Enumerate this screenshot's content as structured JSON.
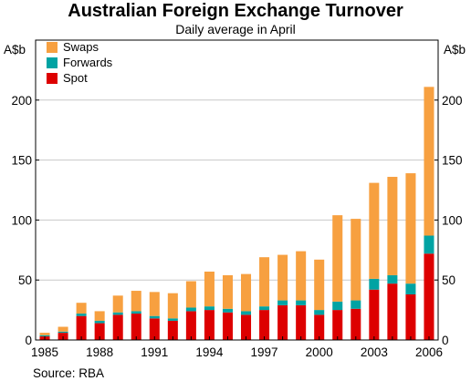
{
  "chart_data": {
    "type": "bar",
    "stacked": true,
    "title": "Australian Foreign Exchange Turnover",
    "subtitle": "Daily average in April",
    "ylabel_left": "A$b",
    "ylabel_right": "A$b",
    "source": "Source: RBA",
    "ylim": [
      0,
      250
    ],
    "yticks": [
      0,
      50,
      100,
      150,
      200
    ],
    "xlim": [
      1985,
      2006
    ],
    "xticks": [
      1985,
      1988,
      1991,
      1994,
      1997,
      2000,
      2003,
      2006
    ],
    "grid": true,
    "legend_position": "top-left",
    "x": [
      1985,
      1986,
      1987,
      1988,
      1989,
      1990,
      1991,
      1992,
      1993,
      1994,
      1995,
      1996,
      1997,
      1998,
      1999,
      2000,
      2001,
      2002,
      2003,
      2004,
      2005,
      2006
    ],
    "series": [
      {
        "name": "Spot",
        "color": "#dd0000",
        "values": [
          3,
          6,
          20,
          14,
          21,
          22,
          18,
          16,
          24,
          25,
          23,
          21,
          25,
          29,
          29,
          21,
          25,
          26,
          42,
          47,
          38,
          72
        ]
      },
      {
        "name": "Forwards",
        "color": "#00a3a3",
        "values": [
          1,
          1,
          2,
          2,
          2,
          2,
          2,
          2,
          3,
          3,
          3,
          3,
          3,
          4,
          4,
          4,
          7,
          7,
          9,
          7,
          9,
          15
        ]
      },
      {
        "name": "Swaps",
        "color": "#f7a040",
        "values": [
          2,
          4,
          9,
          8,
          14,
          17,
          20,
          21,
          22,
          29,
          28,
          31,
          41,
          38,
          41,
          42,
          72,
          68,
          80,
          82,
          92,
          124
        ]
      }
    ],
    "legend_order": [
      "Swaps",
      "Forwards",
      "Spot"
    ]
  }
}
